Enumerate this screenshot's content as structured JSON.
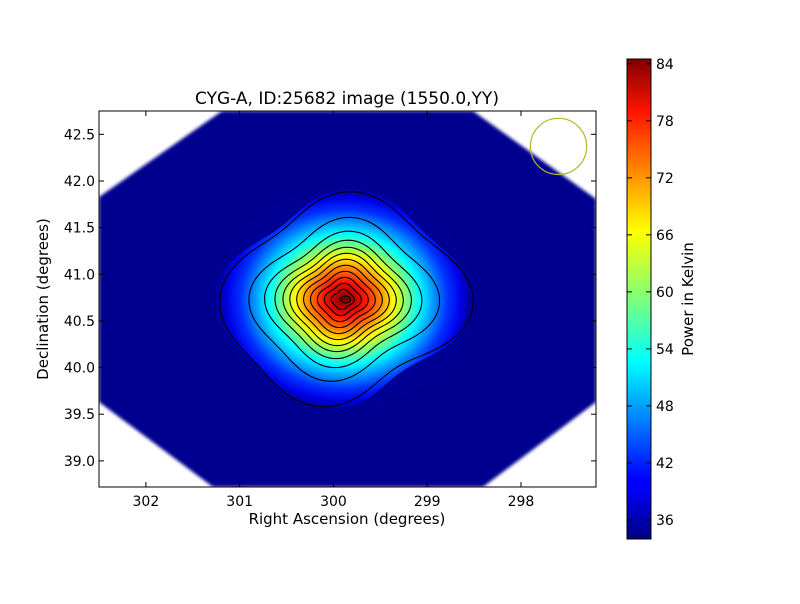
{
  "chart_data": {
    "type": "heatmap",
    "title": "CYG-A, ID:25682 image (1550.0,YY)",
    "xlabel": "Right Ascension (degrees)",
    "ylabel": "Declination (degrees)",
    "xlim": [
      302.5,
      297.2
    ],
    "ylim": [
      38.72,
      42.75
    ],
    "x_ticks": [
      {
        "value": 302,
        "label": "302"
      },
      {
        "value": 301,
        "label": "301"
      },
      {
        "value": 300,
        "label": "300"
      },
      {
        "value": 299,
        "label": "299"
      },
      {
        "value": 298,
        "label": "298"
      }
    ],
    "y_ticks": [
      {
        "value": 39.0,
        "label": "39.0"
      },
      {
        "value": 39.5,
        "label": "39.5"
      },
      {
        "value": 40.0,
        "label": "40.0"
      },
      {
        "value": 40.5,
        "label": "40.5"
      },
      {
        "value": 41.0,
        "label": "41.0"
      },
      {
        "value": 41.5,
        "label": "41.5"
      },
      {
        "value": 42.0,
        "label": "42.0"
      },
      {
        "value": 42.5,
        "label": "42.5"
      }
    ],
    "colorbar": {
      "label": "Power in Kelvin",
      "range": [
        34.0,
        84.5
      ],
      "ticks": [
        {
          "value": 36,
          "label": "36"
        },
        {
          "value": 42,
          "label": "42"
        },
        {
          "value": 48,
          "label": "48"
        },
        {
          "value": 54,
          "label": "54"
        },
        {
          "value": 60,
          "label": "60"
        },
        {
          "value": 66,
          "label": "66"
        },
        {
          "value": 72,
          "label": "72"
        },
        {
          "value": 78,
          "label": "78"
        },
        {
          "value": 84,
          "label": "84"
        }
      ],
      "colormap": "jet"
    },
    "source": {
      "name": "CYG-A",
      "ra": 299.87,
      "dec": 40.73,
      "peak_kelvin": 84
    },
    "background_kelvin": 38,
    "contour_count": 12,
    "beam_marker": {
      "ra": 297.6,
      "dec": 42.37,
      "radius_deg": 0.3,
      "color": "#b5b52a"
    },
    "grid": false
  }
}
